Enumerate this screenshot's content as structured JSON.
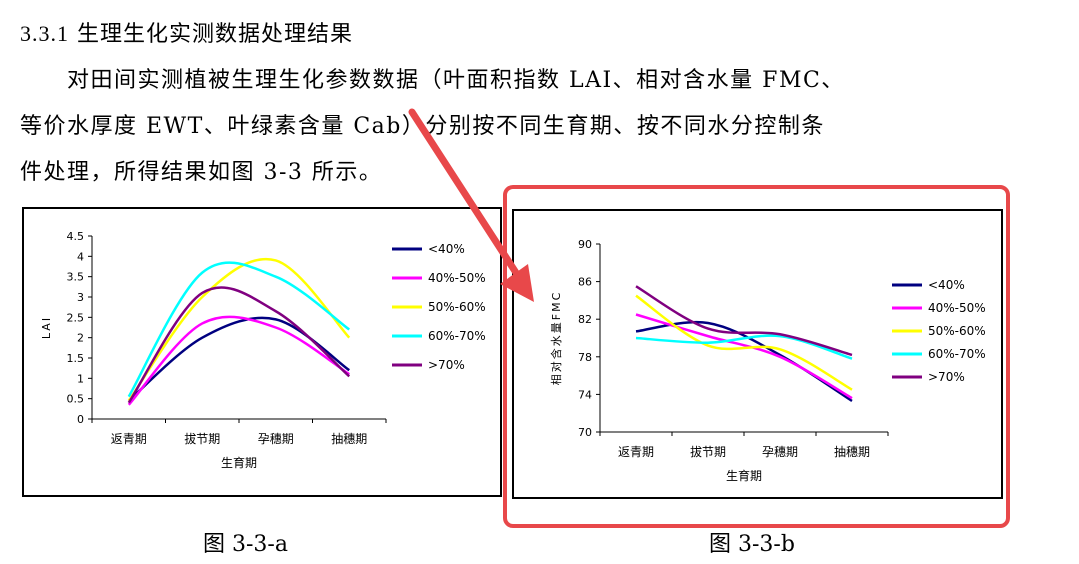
{
  "section": {
    "number": "3.3.1",
    "title": "生理生化实测数据处理结果"
  },
  "paragraph": {
    "lines": [
      "　　对田间实测植被生理生化参数数据（叶面积指数 LAI、相对含水量 FMC、",
      "等价水厚度 EWT、叶绿素含量 Cab）分别按不同生育期、按不同水分控制条",
      "件处理，所得结果如图 3-3 所示。"
    ]
  },
  "captions": {
    "a": "图 3-3-a",
    "b": "图 3-3-b"
  },
  "colors": {
    "highlight": "#e8484a"
  },
  "chart_data": [
    {
      "type": "line",
      "ylabel": "LAI",
      "xlabel": "生育期",
      "categories": [
        "返青期",
        "拔节期",
        "孕穗期",
        "抽穗期"
      ],
      "ylim": [
        0,
        4.5
      ],
      "yticks": [
        "0",
        "0.5",
        "1",
        "1.5",
        "2",
        "2.5",
        "3",
        "3.5",
        "4",
        "4.5"
      ],
      "legend_position": "right",
      "series": [
        {
          "name": "<40%",
          "color": "#000080",
          "values": [
            0.45,
            2.0,
            2.45,
            1.2
          ]
        },
        {
          "name": "40%-50%",
          "color": "#ff00ff",
          "values": [
            0.35,
            2.35,
            2.25,
            1.1
          ]
        },
        {
          "name": "50%-60%",
          "color": "#ffff00",
          "values": [
            0.45,
            3.0,
            3.9,
            2.0
          ]
        },
        {
          "name": "60%-70%",
          "color": "#00ffff",
          "values": [
            0.55,
            3.6,
            3.5,
            2.2
          ]
        },
        {
          "name": ">70%",
          "color": "#800080",
          "values": [
            0.4,
            3.1,
            2.65,
            1.05
          ]
        }
      ]
    },
    {
      "type": "line",
      "ylabel": "相对含水量FMC",
      "xlabel": "生育期",
      "categories": [
        "返青期",
        "拔节期",
        "孕穗期",
        "抽穗期"
      ],
      "ylim": [
        70,
        90
      ],
      "yticks": [
        "70",
        "74",
        "78",
        "82",
        "86",
        "90"
      ],
      "legend_position": "right",
      "series": [
        {
          "name": "<40%",
          "color": "#000080",
          "values": [
            80.7,
            81.6,
            78.2,
            73.3
          ]
        },
        {
          "name": "40%-50%",
          "color": "#ff00ff",
          "values": [
            82.5,
            80.2,
            78.0,
            73.6
          ]
        },
        {
          "name": "50%-60%",
          "color": "#ffff00",
          "values": [
            84.5,
            79.2,
            78.8,
            74.5
          ]
        },
        {
          "name": "60%-70%",
          "color": "#00ffff",
          "values": [
            80.0,
            79.5,
            80.2,
            77.8
          ]
        },
        {
          "name": ">70%",
          "color": "#800080",
          "values": [
            85.5,
            81.0,
            80.4,
            78.2
          ]
        }
      ]
    }
  ]
}
